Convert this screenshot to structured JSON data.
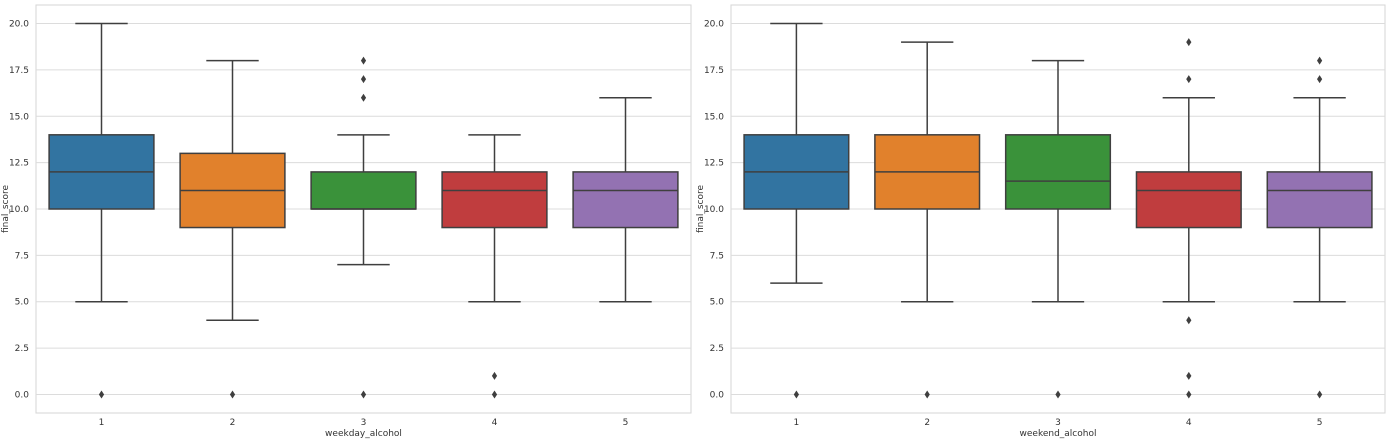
{
  "chart_data": [
    {
      "type": "box",
      "xlabel": "weekday_alcohol",
      "ylabel": "final_score",
      "ylim": [
        -1.0,
        21.0
      ],
      "yticks": [
        "0.0",
        "2.5",
        "5.0",
        "7.5",
        "10.0",
        "12.5",
        "15.0",
        "17.5",
        "20.0"
      ],
      "ytick_values": [
        0,
        2.5,
        5,
        7.5,
        10,
        12.5,
        15,
        17.5,
        20
      ],
      "grid": true,
      "categories": [
        "1",
        "2",
        "3",
        "4",
        "5"
      ],
      "boxes": [
        {
          "category": "1",
          "color": "#3274a1",
          "whisker_low": 5,
          "q1": 10,
          "median": 12,
          "q3": 14,
          "whisker_high": 20,
          "outliers": [
            0
          ]
        },
        {
          "category": "2",
          "color": "#e1812c",
          "whisker_low": 4,
          "q1": 9,
          "median": 11,
          "q3": 13,
          "whisker_high": 18,
          "outliers": [
            0
          ]
        },
        {
          "category": "3",
          "color": "#3a923a",
          "whisker_low": 7,
          "q1": 10,
          "median": 10,
          "q3": 12,
          "whisker_high": 14,
          "outliers": [
            16,
            17,
            18,
            0
          ]
        },
        {
          "category": "4",
          "color": "#c03d3e",
          "whisker_low": 5,
          "q1": 9,
          "median": 11,
          "q3": 12,
          "whisker_high": 14,
          "outliers": [
            1,
            0
          ]
        },
        {
          "category": "5",
          "color": "#9372b2",
          "whisker_low": 5,
          "q1": 9,
          "median": 11,
          "q3": 12,
          "whisker_high": 16,
          "outliers": []
        }
      ]
    },
    {
      "type": "box",
      "xlabel": "weekend_alcohol",
      "ylabel": "final_score",
      "ylim": [
        -1.0,
        21.0
      ],
      "yticks": [
        "0.0",
        "2.5",
        "5.0",
        "7.5",
        "10.0",
        "12.5",
        "15.0",
        "17.5",
        "20.0"
      ],
      "ytick_values": [
        0,
        2.5,
        5,
        7.5,
        10,
        12.5,
        15,
        17.5,
        20
      ],
      "grid": true,
      "categories": [
        "1",
        "2",
        "3",
        "4",
        "5"
      ],
      "boxes": [
        {
          "category": "1",
          "color": "#3274a1",
          "whisker_low": 6,
          "q1": 10,
          "median": 12,
          "q3": 14,
          "whisker_high": 20,
          "outliers": [
            0
          ]
        },
        {
          "category": "2",
          "color": "#e1812c",
          "whisker_low": 5,
          "q1": 10,
          "median": 12,
          "q3": 14,
          "whisker_high": 19,
          "outliers": [
            0
          ]
        },
        {
          "category": "3",
          "color": "#3a923a",
          "whisker_low": 5,
          "q1": 10,
          "median": 11.5,
          "q3": 14,
          "whisker_high": 18,
          "outliers": [
            0
          ]
        },
        {
          "category": "4",
          "color": "#c03d3e",
          "whisker_low": 5,
          "q1": 9,
          "median": 11,
          "q3": 12,
          "whisker_high": 16,
          "outliers": [
            19,
            17,
            4,
            1,
            0
          ]
        },
        {
          "category": "5",
          "color": "#9372b2",
          "whisker_low": 5,
          "q1": 9,
          "median": 11,
          "q3": 12,
          "whisker_high": 16,
          "outliers": [
            18,
            17,
            0
          ]
        }
      ]
    }
  ]
}
